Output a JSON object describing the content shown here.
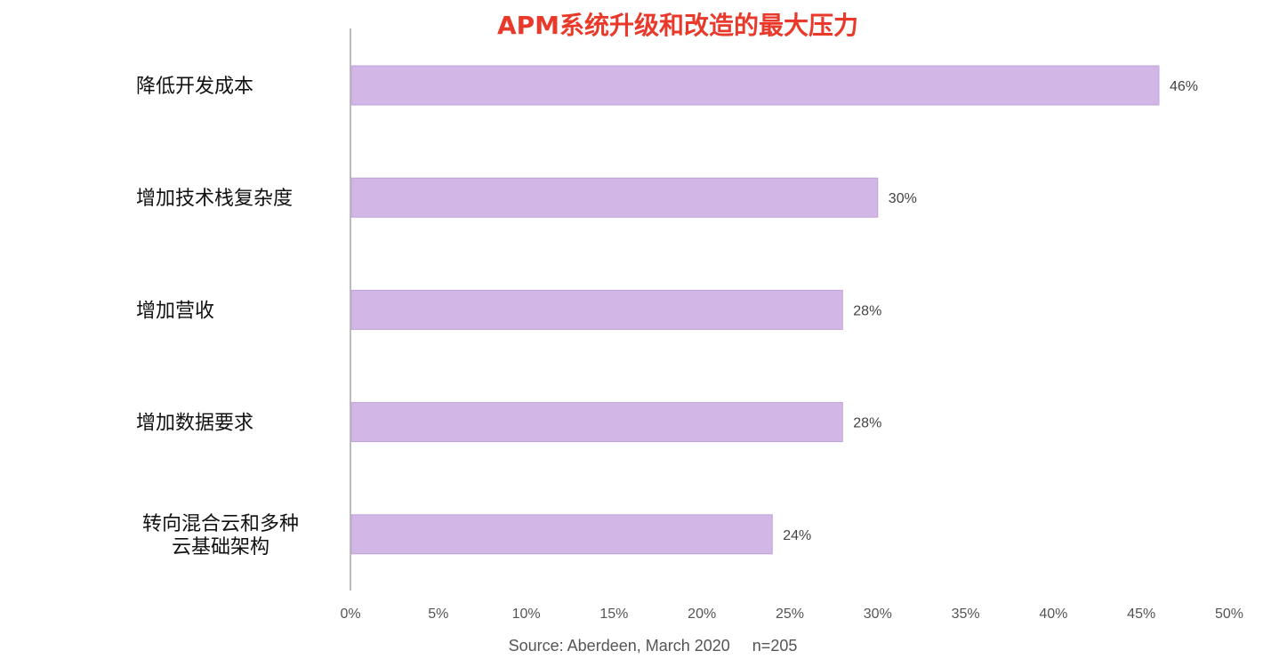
{
  "chart_data": {
    "type": "bar",
    "orientation": "horizontal",
    "title": "APM系统升级和改造的最大压力",
    "categories": [
      [
        "降低开发成本"
      ],
      [
        "增加技术栈复杂度"
      ],
      [
        "增加营收"
      ],
      [
        "增加数据要求"
      ],
      [
        "转向混合云和多种",
        "云基础架构"
      ]
    ],
    "values": [
      46,
      30,
      28,
      28,
      24
    ],
    "data_labels": [
      "46%",
      "30%",
      "28%",
      "28%",
      "24%"
    ],
    "xlim": [
      0,
      50
    ],
    "x_ticks": [
      0,
      5,
      10,
      15,
      20,
      25,
      30,
      35,
      40,
      45,
      50
    ],
    "x_tick_labels": [
      "0%",
      "5%",
      "10%",
      "15%",
      "20%",
      "25%",
      "30%",
      "35%",
      "40%",
      "45%",
      "50%"
    ],
    "grid": false,
    "legend": "none",
    "source_note": "Source: Aberdeen, March 2020     n=205",
    "colors": {
      "bar_fill": "#d2b6e6",
      "bar_stroke": "#bfa3d6",
      "axis": "#bbbbbb",
      "title": "#e8392a"
    }
  }
}
